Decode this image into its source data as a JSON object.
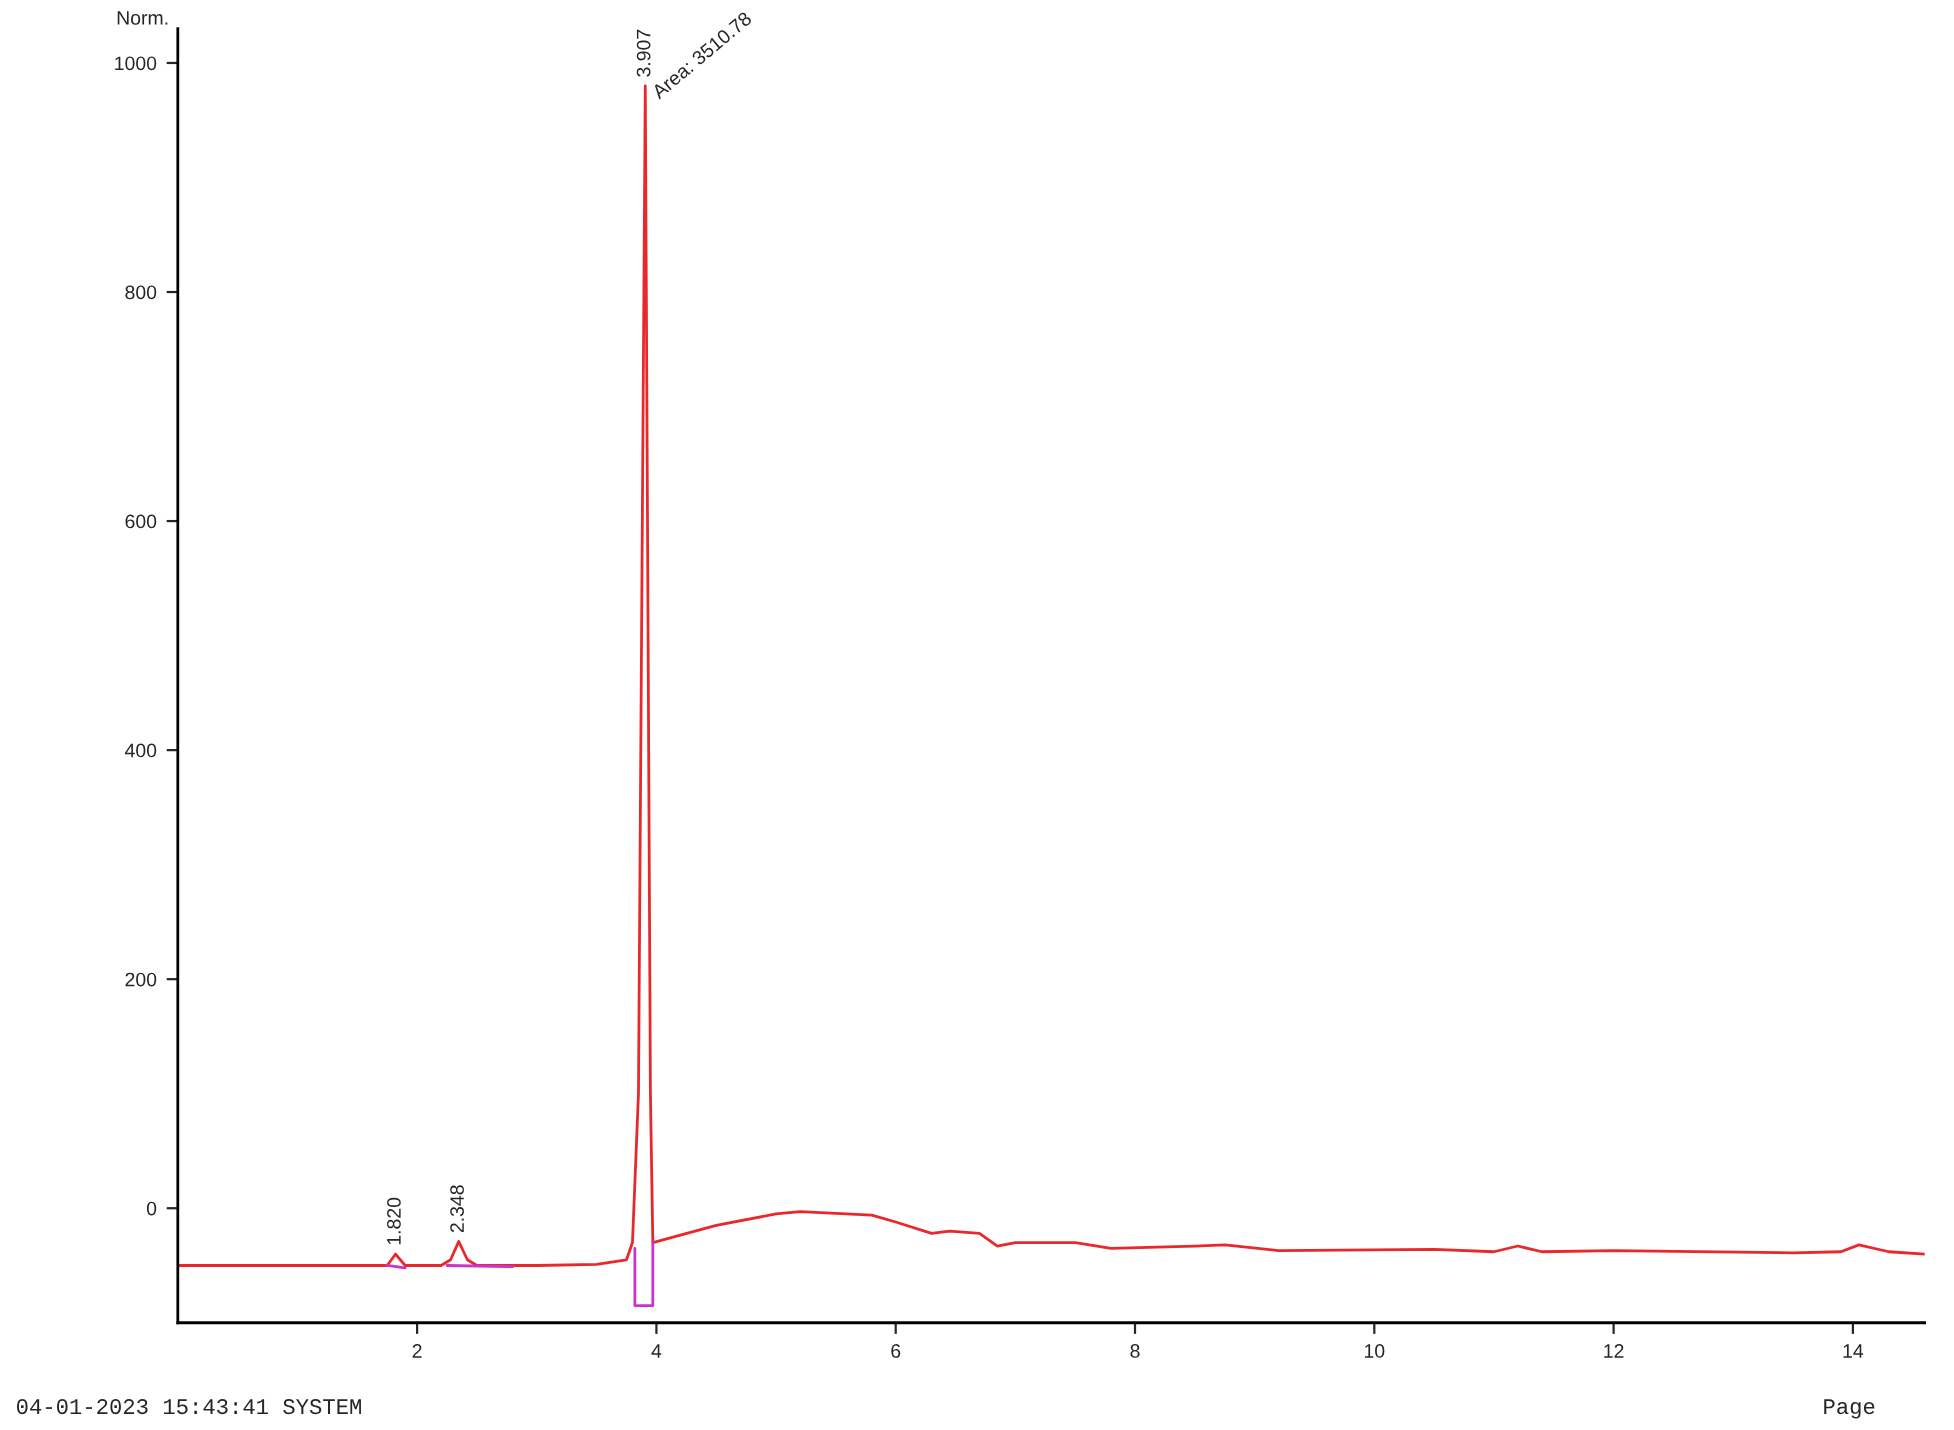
{
  "chart_data": {
    "type": "line",
    "ylabel": "Norm.",
    "series": [
      {
        "color": "#e8282b",
        "x": [
          0.0,
          1.0,
          1.75,
          1.82,
          1.9,
          2.2,
          2.28,
          2.348,
          2.42,
          2.5,
          3.0,
          3.5,
          3.75,
          3.8,
          3.85,
          3.907,
          3.95,
          3.97,
          4.5,
          5.0,
          5.2,
          5.8,
          6.0,
          6.3,
          6.45,
          6.7,
          6.85,
          7.0,
          7.5,
          7.8,
          8.5,
          8.75,
          9.2,
          10.5,
          11.0,
          11.2,
          11.4,
          12.0,
          13.5,
          13.9,
          14.05,
          14.3,
          14.6
        ],
        "values": [
          -50,
          -50,
          -50,
          -40,
          -50,
          -50,
          -45,
          -29,
          -45,
          -50,
          -50,
          -49,
          -45,
          -30,
          100,
          980,
          100,
          -30,
          -15,
          -5,
          -3,
          -6,
          -12,
          -22,
          -20,
          -22,
          -33,
          -30,
          -30,
          -35,
          -33,
          -32,
          -37,
          -36,
          -38,
          -33,
          -38,
          -37,
          -39,
          -38,
          -32,
          -38,
          -40
        ]
      },
      {
        "color": "#cc33cc",
        "x": [
          1.75,
          1.9,
          1.95,
          2.25,
          2.8,
          2.85,
          3.82,
          3.82,
          3.97,
          3.97
        ],
        "values": [
          -50,
          -52,
          null,
          -50,
          -51,
          null,
          -35,
          -85,
          -85,
          -30
        ]
      }
    ],
    "xlim": [
      0,
      14.6
    ],
    "ylim": [
      -100,
      1030
    ],
    "xticks": [
      2,
      4,
      6,
      8,
      10,
      12,
      14
    ],
    "yticks": [
      0,
      200,
      400,
      600,
      800,
      1000
    ],
    "annotations": [
      {
        "text": "1.820",
        "x": 1.82,
        "y": -40
      },
      {
        "text": "2.348",
        "x": 2.348,
        "y": -29
      },
      {
        "text": "3.907",
        "x": 3.907,
        "y": 980
      },
      {
        "text": "Area: 3510.78",
        "x": 3.907,
        "y": 980
      },
      "04-01-2023 15:43:41 SYSTEM",
      "Page"
    ]
  }
}
